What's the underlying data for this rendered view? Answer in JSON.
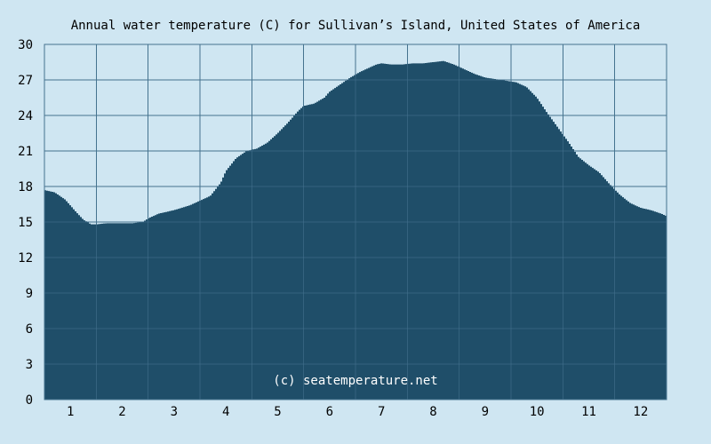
{
  "chart_data": {
    "type": "area",
    "title": "Annual water temperature (C) for Sullivan’s Island, United States of America",
    "xlabel": "",
    "ylabel": "",
    "x_categories": [
      "1",
      "2",
      "3",
      "4",
      "5",
      "6",
      "7",
      "8",
      "9",
      "10",
      "11",
      "12"
    ],
    "xlim": [
      0.5,
      12.5
    ],
    "ylim": [
      0,
      30
    ],
    "y_ticks": [
      0,
      3,
      6,
      9,
      12,
      15,
      18,
      21,
      24,
      27,
      30
    ],
    "grid": true,
    "watermark": "(c) seatemperature.net",
    "colors": {
      "background": "#cfe6f2",
      "plot_background": "#cfe6f2",
      "fill": "#1f4e69",
      "grid": "#46738f",
      "text": "#000000",
      "watermark": "#ffffff"
    },
    "series": [
      {
        "x": [
          0.5,
          0.7,
          0.9,
          1.0,
          1.1,
          1.25,
          1.4,
          1.5,
          1.7,
          1.9,
          2.0,
          2.2,
          2.4,
          2.5,
          2.7,
          3.0,
          3.3,
          3.5,
          3.7,
          3.9,
          4.0,
          4.2,
          4.4,
          4.6,
          4.8,
          5.0,
          5.2,
          5.3,
          5.4,
          5.5,
          5.7,
          5.9,
          6.0,
          6.2,
          6.4,
          6.6,
          6.8,
          6.9,
          7.0,
          7.2,
          7.4,
          7.6,
          7.8,
          8.0,
          8.2,
          8.4,
          8.6,
          8.8,
          9.0,
          9.3,
          9.6,
          9.8,
          10.0,
          10.2,
          10.4,
          10.6,
          10.8,
          11.0,
          11.2,
          11.4,
          11.6,
          11.8,
          12.0,
          12.2,
          12.4,
          12.5
        ],
        "y": [
          17.7,
          17.5,
          16.9,
          16.4,
          15.9,
          15.2,
          14.8,
          14.8,
          14.9,
          14.9,
          14.9,
          14.9,
          15.0,
          15.3,
          15.7,
          16.0,
          16.4,
          16.8,
          17.2,
          18.3,
          19.3,
          20.4,
          21.0,
          21.2,
          21.7,
          22.5,
          23.4,
          23.9,
          24.4,
          24.8,
          25.0,
          25.5,
          26.0,
          26.6,
          27.2,
          27.7,
          28.1,
          28.3,
          28.4,
          28.3,
          28.3,
          28.4,
          28.4,
          28.5,
          28.6,
          28.3,
          27.9,
          27.5,
          27.2,
          27.0,
          26.8,
          26.4,
          25.5,
          24.2,
          23.0,
          21.8,
          20.5,
          19.8,
          19.2,
          18.2,
          17.3,
          16.6,
          16.2,
          16.0,
          15.7,
          15.5
        ]
      }
    ]
  }
}
